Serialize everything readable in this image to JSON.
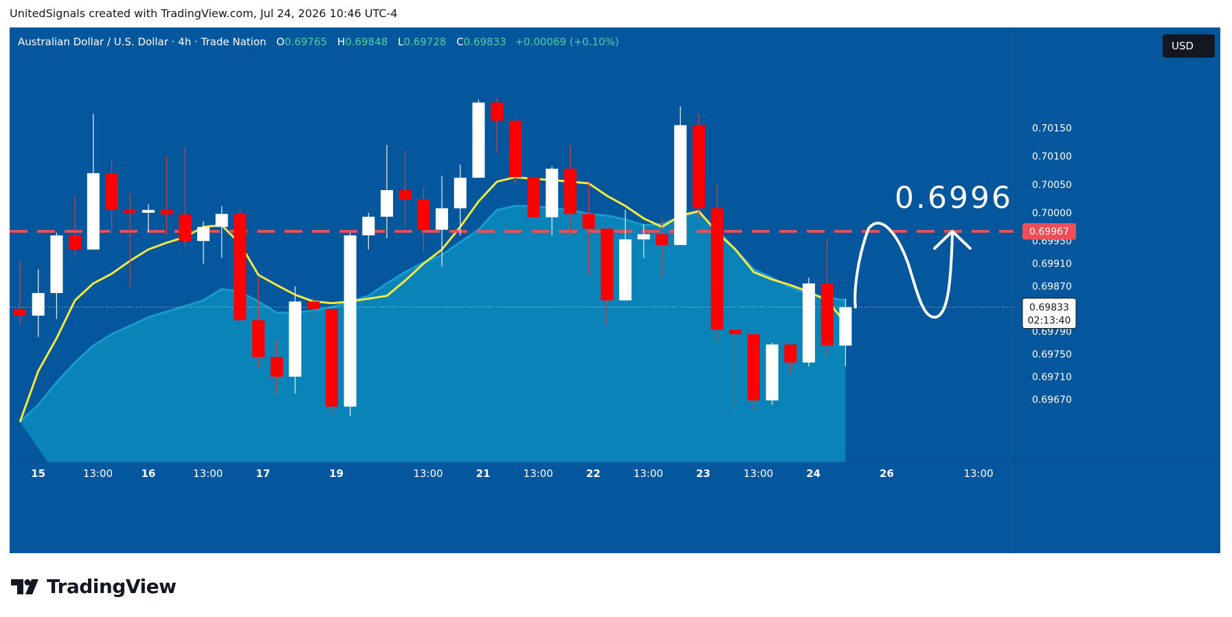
{
  "header": {
    "text": "UnitedSignals created with TradingView.com, Jul 24, 2026 10:46 UTC-4"
  },
  "legend": {
    "symbol": "Australian Dollar / U.S. Dollar · 4h · Trade Nation",
    "o_label": "O",
    "o": "0.69765",
    "h_label": "H",
    "h": "0.69848",
    "l_label": "L",
    "l": "0.69728",
    "c_label": "C",
    "c": "0.69833",
    "change": "+0.00069 (+0.10%)"
  },
  "currency_button": "USD",
  "price_tags": {
    "level": "0.69967",
    "current": "0.69833",
    "countdown": "02:13:40"
  },
  "annotation": {
    "text": "0.6996"
  },
  "footer": {
    "brand": "TradingView"
  },
  "colors": {
    "background": "#04579c",
    "up_candle": "#ffffff",
    "down_candle": "#ff0000",
    "ma_line": "#ffeb3b",
    "area_fill": "#0a8bbd",
    "level_line": "#ef4d58"
  },
  "chart_data": {
    "type": "candlestick",
    "timeframe": "4h",
    "y_axis": {
      "ticks": [
        0.6967,
        0.6971,
        0.6975,
        0.6979,
        0.6983,
        0.6987,
        0.6991,
        0.6995,
        0.7,
        0.7005,
        0.701,
        0.7015
      ],
      "tick_labels": [
        "0.69670",
        "0.69710",
        "0.69750",
        "0.69790",
        "",
        "0.69870",
        "0.69910",
        "0.69950",
        "0.70000",
        "0.70050",
        "0.70100",
        "0.70150"
      ],
      "range": [
        0.6963,
        0.7022
      ],
      "position": "right"
    },
    "x_axis": {
      "tick_labels": [
        {
          "label": "15",
          "bar": 1,
          "bold": true
        },
        {
          "label": "13:00",
          "bar": 4.25,
          "bold": false
        },
        {
          "label": "16",
          "bar": 7,
          "bold": true
        },
        {
          "label": "13:00",
          "bar": 10.25,
          "bold": false
        },
        {
          "label": "17",
          "bar": 13.25,
          "bold": true
        },
        {
          "label": "19",
          "bar": 17.25,
          "bold": true
        },
        {
          "label": "13:00",
          "bar": 22.25,
          "bold": false
        },
        {
          "label": "21",
          "bar": 25.25,
          "bold": true
        },
        {
          "label": "13:00",
          "bar": 28.25,
          "bold": false
        },
        {
          "label": "22",
          "bar": 31.25,
          "bold": true
        },
        {
          "label": "13:00",
          "bar": 34.25,
          "bold": false
        },
        {
          "label": "23",
          "bar": 37.25,
          "bold": true
        },
        {
          "label": "13:00",
          "bar": 40.25,
          "bold": false
        },
        {
          "label": "24",
          "bar": 43.25,
          "bold": true
        },
        {
          "label": "26",
          "bar": 47.25,
          "bold": true
        },
        {
          "label": "13:00",
          "bar": 52.25,
          "bold": false
        }
      ]
    },
    "candles": [
      {
        "o": 0.6983,
        "h": 0.69915,
        "l": 0.69802,
        "c": 0.69818
      },
      {
        "o": 0.69818,
        "h": 0.699,
        "l": 0.6978,
        "c": 0.69858
      },
      {
        "o": 0.69858,
        "h": 0.69965,
        "l": 0.69812,
        "c": 0.6996
      },
      {
        "o": 0.6996,
        "h": 0.7003,
        "l": 0.69925,
        "c": 0.69935
      },
      {
        "o": 0.69935,
        "h": 0.70175,
        "l": 0.69935,
        "c": 0.7007
      },
      {
        "o": 0.7007,
        "h": 0.70095,
        "l": 0.69963,
        "c": 0.70005
      },
      {
        "o": 0.70005,
        "h": 0.70035,
        "l": 0.6987,
        "c": 0.7
      },
      {
        "o": 0.7,
        "h": 0.70015,
        "l": 0.69965,
        "c": 0.70005
      },
      {
        "o": 0.70005,
        "h": 0.701,
        "l": 0.6996,
        "c": 0.69997
      },
      {
        "o": 0.69997,
        "h": 0.70115,
        "l": 0.6994,
        "c": 0.6995
      },
      {
        "o": 0.6995,
        "h": 0.69985,
        "l": 0.6991,
        "c": 0.69975
      },
      {
        "o": 0.69975,
        "h": 0.70012,
        "l": 0.6992,
        "c": 0.69998
      },
      {
        "o": 0.69998,
        "h": 0.70005,
        "l": 0.6981,
        "c": 0.6981
      },
      {
        "o": 0.6981,
        "h": 0.69885,
        "l": 0.69725,
        "c": 0.69745
      },
      {
        "o": 0.69745,
        "h": 0.69775,
        "l": 0.6968,
        "c": 0.6971
      },
      {
        "o": 0.6971,
        "h": 0.6987,
        "l": 0.6968,
        "c": 0.69843
      },
      {
        "o": 0.69843,
        "h": 0.6985,
        "l": 0.6981,
        "c": 0.6983
      },
      {
        "o": 0.6983,
        "h": 0.6983,
        "l": 0.6964,
        "c": 0.69657
      },
      {
        "o": 0.69657,
        "h": 0.69965,
        "l": 0.6964,
        "c": 0.6996
      },
      {
        "o": 0.6996,
        "h": 0.7,
        "l": 0.69935,
        "c": 0.69993
      },
      {
        "o": 0.69993,
        "h": 0.7012,
        "l": 0.69955,
        "c": 0.7004
      },
      {
        "o": 0.7004,
        "h": 0.7011,
        "l": 0.69975,
        "c": 0.70023
      },
      {
        "o": 0.70023,
        "h": 0.70045,
        "l": 0.6993,
        "c": 0.6997
      },
      {
        "o": 0.6997,
        "h": 0.70065,
        "l": 0.69905,
        "c": 0.70008
      },
      {
        "o": 0.70008,
        "h": 0.70085,
        "l": 0.6996,
        "c": 0.70062
      },
      {
        "o": 0.70062,
        "h": 0.702,
        "l": 0.70062,
        "c": 0.70195
      },
      {
        "o": 0.70195,
        "h": 0.70203,
        "l": 0.70105,
        "c": 0.70163
      },
      {
        "o": 0.70163,
        "h": 0.70163,
        "l": 0.7005,
        "c": 0.70063
      },
      {
        "o": 0.70063,
        "h": 0.70063,
        "l": 0.6999,
        "c": 0.69992
      },
      {
        "o": 0.69992,
        "h": 0.70082,
        "l": 0.6996,
        "c": 0.70078
      },
      {
        "o": 0.70078,
        "h": 0.7012,
        "l": 0.6996,
        "c": 0.69998
      },
      {
        "o": 0.69998,
        "h": 0.70055,
        "l": 0.6989,
        "c": 0.69972
      },
      {
        "o": 0.69972,
        "h": 0.69972,
        "l": 0.698,
        "c": 0.69845
      },
      {
        "o": 0.69845,
        "h": 0.70005,
        "l": 0.69845,
        "c": 0.69953
      },
      {
        "o": 0.69953,
        "h": 0.6998,
        "l": 0.6992,
        "c": 0.69962
      },
      {
        "o": 0.69962,
        "h": 0.6999,
        "l": 0.69885,
        "c": 0.69943
      },
      {
        "o": 0.69943,
        "h": 0.70188,
        "l": 0.69943,
        "c": 0.70155
      },
      {
        "o": 0.70155,
        "h": 0.70175,
        "l": 0.6999,
        "c": 0.70008
      },
      {
        "o": 0.70008,
        "h": 0.7005,
        "l": 0.6977,
        "c": 0.69793
      },
      {
        "o": 0.69793,
        "h": 0.69793,
        "l": 0.6965,
        "c": 0.69785
      },
      {
        "o": 0.69785,
        "h": 0.69785,
        "l": 0.6965,
        "c": 0.69668
      },
      {
        "o": 0.69668,
        "h": 0.6977,
        "l": 0.6966,
        "c": 0.69767
      },
      {
        "o": 0.69767,
        "h": 0.69767,
        "l": 0.69715,
        "c": 0.69735
      },
      {
        "o": 0.69735,
        "h": 0.69885,
        "l": 0.69728,
        "c": 0.69875
      },
      {
        "o": 0.69875,
        "h": 0.69955,
        "l": 0.69745,
        "c": 0.69765
      },
      {
        "o": 0.69765,
        "h": 0.69848,
        "l": 0.69728,
        "c": 0.69833
      }
    ],
    "moving_average": [
      0.6963,
      0.6972,
      0.69778,
      0.69845,
      0.69875,
      0.69892,
      0.69915,
      0.69935,
      0.69947,
      0.69957,
      0.69975,
      0.69978,
      0.69945,
      0.6989,
      0.69872,
      0.69855,
      0.69843,
      0.6984,
      0.69843,
      0.69848,
      0.69853,
      0.6988,
      0.6991,
      0.69935,
      0.69975,
      0.7002,
      0.70055,
      0.70063,
      0.7006,
      0.70058,
      0.70055,
      0.70052,
      0.7003,
      0.70012,
      0.6999,
      0.69975,
      0.69995,
      0.70003,
      0.69965,
      0.69935,
      0.69895,
      0.69882,
      0.69872,
      0.6986,
      0.69845,
      0.69805
    ],
    "area_band": [
      0.6963,
      0.6966,
      0.697,
      0.69735,
      0.69765,
      0.69785,
      0.698,
      0.69815,
      0.69825,
      0.69835,
      0.69845,
      0.69865,
      0.6986,
      0.69843,
      0.69823,
      0.69823,
      0.69827,
      0.69833,
      0.69843,
      0.69853,
      0.69875,
      0.69895,
      0.69912,
      0.69925,
      0.69948,
      0.6997,
      0.70005,
      0.70012,
      0.70012,
      0.70008,
      0.70005,
      0.69998,
      0.69995,
      0.69988,
      0.69978,
      0.6998,
      0.69993,
      0.7,
      0.6997,
      0.69935,
      0.699,
      0.69885,
      0.69868,
      0.69855,
      0.6985,
      0.69845
    ],
    "horizontal_level": 0.69967,
    "current_price": 0.69833,
    "projection_target": 0.6996
  }
}
